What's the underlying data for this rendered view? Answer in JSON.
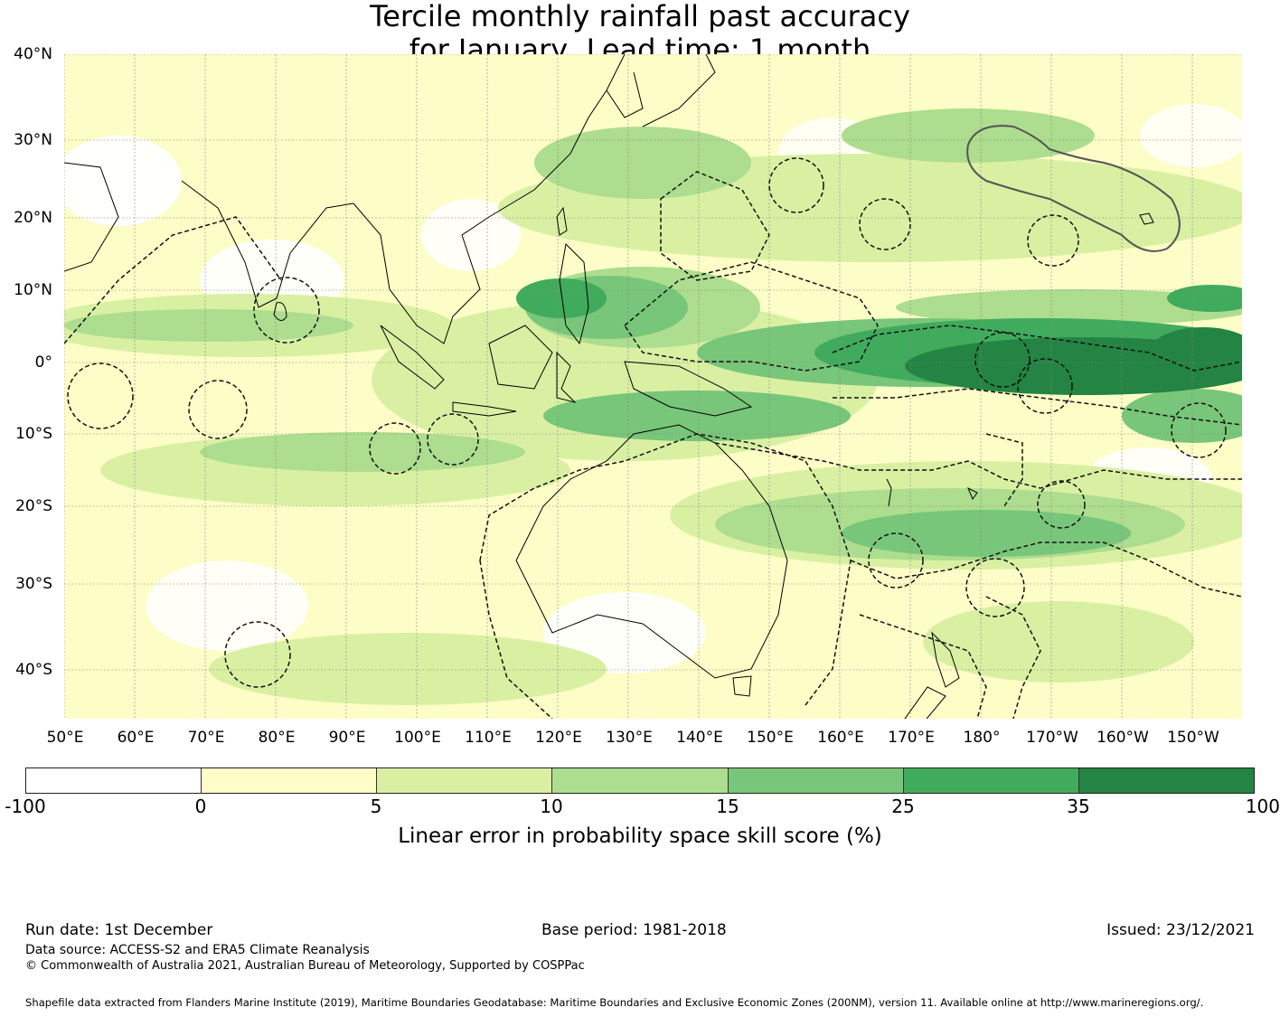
{
  "title": {
    "line1": "Tercile monthly rainfall past accuracy",
    "line2": "for January, Lead time: 1 month"
  },
  "map": {
    "lon_range": [
      50,
      217
    ],
    "lat_range": [
      -46,
      40
    ],
    "lat_labels": [
      "40°N",
      "30°N",
      "20°N",
      "10°N",
      "0°",
      "10°S",
      "20°S",
      "30°S",
      "40°S"
    ],
    "lon_labels": [
      "50°E",
      "60°E",
      "70°E",
      "80°E",
      "90°E",
      "100°E",
      "110°E",
      "120°E",
      "130°E",
      "140°E",
      "150°E",
      "160°E",
      "170°E",
      "180°",
      "170°W",
      "160°W",
      "150°W"
    ],
    "colors": {
      "land_line": "#000000",
      "boundary_line": "#111111",
      "grid_line": "#888888"
    }
  },
  "colorbar": {
    "ticks": [
      "-100",
      "0",
      "5",
      "10",
      "15",
      "25",
      "35",
      "100"
    ],
    "colors": [
      "#ffffff",
      "#fdfec7",
      "#d9f0a3",
      "#addd8e",
      "#78c679",
      "#41ab5d",
      "#238443"
    ],
    "label": "Linear error in probability space skill score (%)"
  },
  "footer": {
    "run_date": "Run date: 1st December",
    "base_period": "Base period: 1981-2018",
    "issued": "Issued: 23/12/2021",
    "data_source": "Data source: ACCESS-S2 and ERA5 Climate Reanalysis",
    "copyright": "© Commonwealth of Australia 2021, Australian Bureau of Meteorology, Supported by COSPPac",
    "shapefile": "Shapefile data extracted from Flanders Marine Institute (2019), Maritime Boundaries Geodatabase: Maritime Boundaries and Exclusive Economic Zones (200NM), version 11. Available online at http://www.marineregions.org/."
  }
}
